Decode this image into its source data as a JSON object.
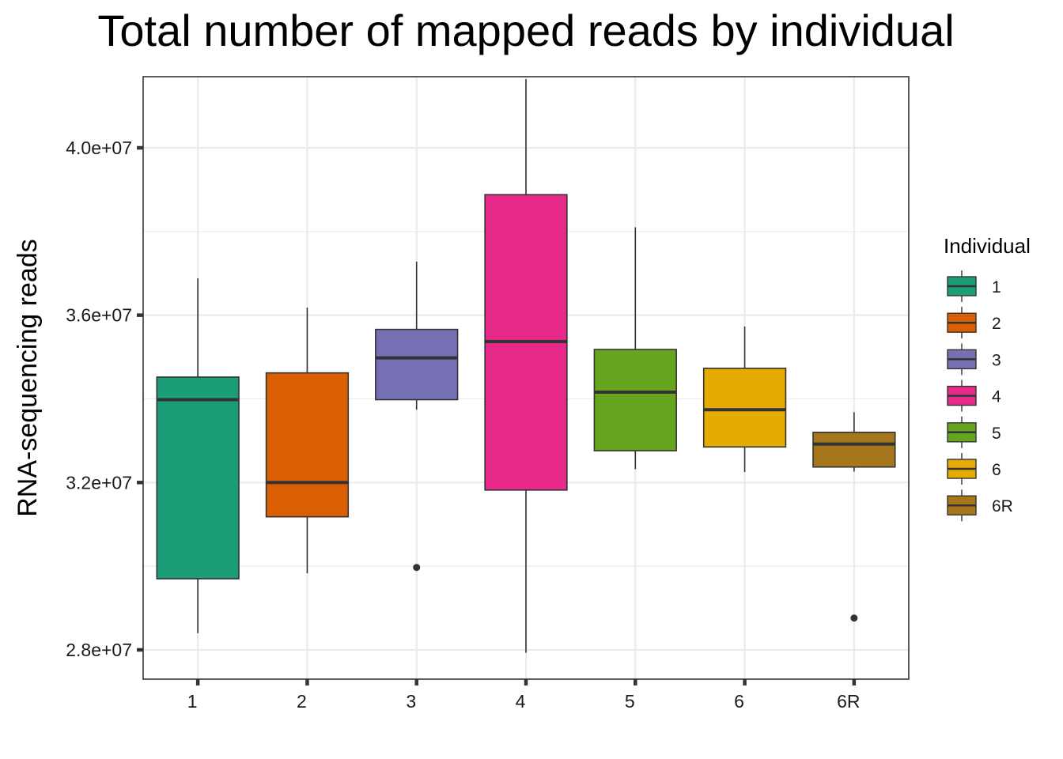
{
  "chart_data": {
    "type": "boxplot",
    "title": "Total number of mapped reads by individual",
    "xlabel": "",
    "ylabel": "RNA-sequencing reads",
    "ylim": [
      27300000,
      41700000
    ],
    "y_ticks": [
      28000000,
      32000000,
      36000000,
      40000000
    ],
    "y_tick_labels": [
      "2.8e+07",
      "3.2e+07",
      "3.6e+07",
      "4.0e+07"
    ],
    "grid": true,
    "legend": {
      "title": "Individual",
      "position": "right"
    },
    "categories": [
      "1",
      "2",
      "3",
      "4",
      "5",
      "6",
      "6R"
    ],
    "series": [
      {
        "name": "1",
        "color": "#1b9e77",
        "whisker_low": 28400000,
        "q1": 29700000,
        "median": 33980000,
        "q3": 34520000,
        "whisker_high": 36880000,
        "outliers": []
      },
      {
        "name": "2",
        "color": "#d95f02",
        "whisker_low": 29830000,
        "q1": 31180000,
        "median": 32000000,
        "q3": 34620000,
        "whisker_high": 36180000,
        "outliers": []
      },
      {
        "name": "3",
        "color": "#7570b3",
        "whisker_low": 33740000,
        "q1": 33980000,
        "median": 34980000,
        "q3": 35660000,
        "whisker_high": 37280000,
        "outliers": [
          29970000
        ]
      },
      {
        "name": "4",
        "color": "#e7298a",
        "whisker_low": 27930000,
        "q1": 31820000,
        "median": 35370000,
        "q3": 38880000,
        "whisker_high": 41640000,
        "outliers": []
      },
      {
        "name": "5",
        "color": "#66a61e",
        "whisker_low": 32320000,
        "q1": 32760000,
        "median": 34160000,
        "q3": 35180000,
        "whisker_high": 38100000,
        "outliers": []
      },
      {
        "name": "6",
        "color": "#e6ab02",
        "whisker_low": 32250000,
        "q1": 32850000,
        "median": 33740000,
        "q3": 34730000,
        "whisker_high": 35730000,
        "outliers": []
      },
      {
        "name": "6R",
        "color": "#a6761d",
        "whisker_low": 32260000,
        "q1": 32370000,
        "median": 32920000,
        "q3": 33200000,
        "whisker_high": 33680000,
        "outliers": [
          28760000
        ]
      }
    ]
  }
}
